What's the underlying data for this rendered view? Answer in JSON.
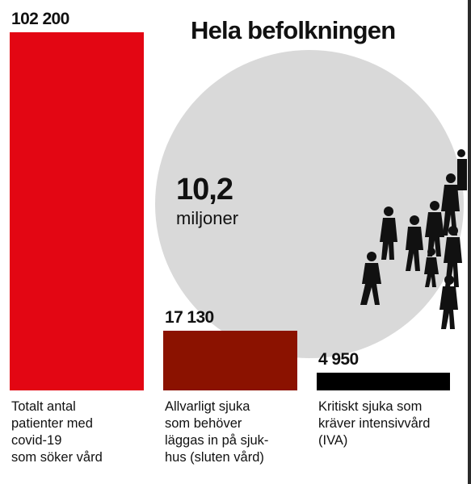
{
  "chart_data": {
    "type": "bar",
    "title": "Hela befolkningen",
    "total_population": {
      "value": "10,2",
      "unit": "miljoner",
      "circle_color": "#d9d9d9"
    },
    "series": [
      {
        "values": [
          102200,
          17130,
          4950
        ],
        "value_labels": [
          "102 200",
          "17 130",
          "4 950"
        ],
        "colors": [
          "#e30613",
          "#8b1200",
          "#000000"
        ]
      }
    ],
    "categories": [
      "Totalt antal\npatienter med\ncovid-19\nsom söker vård",
      "Allvarligt sjuka\nsom behöver\nläggas in på sjuk-\nhus (sluten vård)",
      "Kritiskt sjuka som\nkräver intensivvård\n(IVA)"
    ],
    "xlabel": "",
    "ylabel": "",
    "ylim": [
      0,
      102200
    ],
    "grid": false
  }
}
